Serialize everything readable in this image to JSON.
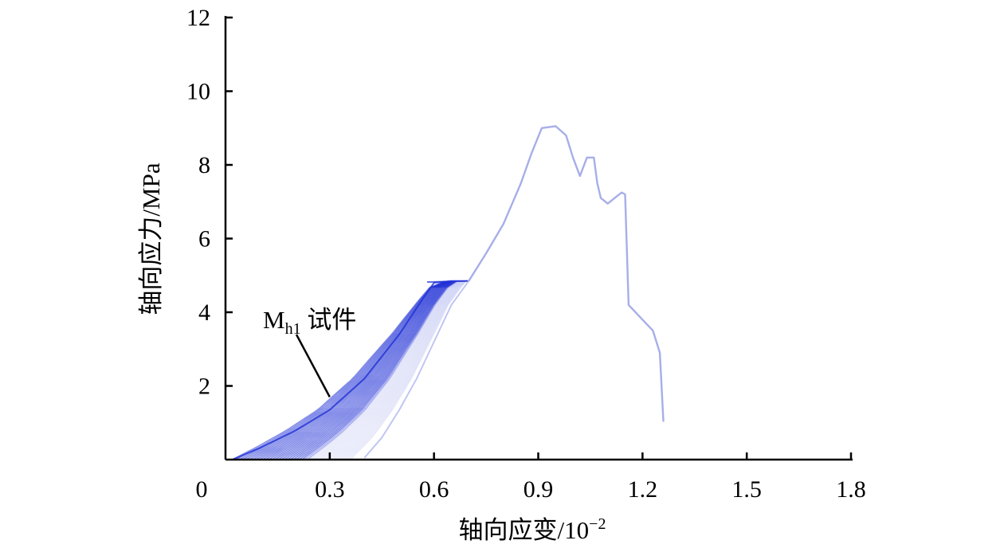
{
  "chart_data": {
    "type": "line",
    "xlabel": "轴向应变/10",
    "xlabel_sup": "−2",
    "ylabel": "轴向应力/MPa",
    "xlim": [
      0,
      1.8
    ],
    "ylim": [
      0,
      12
    ],
    "x_ticks": [
      "0",
      "0.3",
      "0.6",
      "0.9",
      "1.2",
      "1.5",
      "1.8"
    ],
    "y_ticks": [
      "2",
      "4",
      "6",
      "8",
      "10",
      "12"
    ],
    "grid": false,
    "annotation": {
      "main": "M",
      "subscript": "h1",
      "suffix": " 试件",
      "points_to": [
        0.3,
        1.7
      ]
    },
    "colors": {
      "cycles": "#1f2fd6",
      "cycles_light": "#b9c0f2",
      "envelope": "#a7aee8",
      "axis": "#000000"
    },
    "series": [
      {
        "role": "cyclic-loading-envelope",
        "points": [
          [
            0.02,
            0.0
          ],
          [
            0.1,
            0.32
          ],
          [
            0.2,
            0.78
          ],
          [
            0.3,
            1.35
          ],
          [
            0.4,
            2.2
          ],
          [
            0.5,
            3.4
          ],
          [
            0.57,
            4.4
          ],
          [
            0.6,
            4.8
          ],
          [
            0.65,
            4.85
          ],
          [
            0.7,
            4.85
          ]
        ]
      },
      {
        "role": "cyclic-unloading-envelope",
        "points": [
          [
            0.7,
            4.85
          ],
          [
            0.65,
            4.2
          ],
          [
            0.6,
            3.2
          ],
          [
            0.55,
            2.2
          ],
          [
            0.5,
            1.35
          ],
          [
            0.45,
            0.6
          ],
          [
            0.4,
            0.05
          ]
        ]
      },
      {
        "role": "post-cycle-curve",
        "points": [
          [
            0.7,
            4.85
          ],
          [
            0.75,
            5.6
          ],
          [
            0.8,
            6.4
          ],
          [
            0.85,
            7.5
          ],
          [
            0.88,
            8.3
          ],
          [
            0.91,
            9.0
          ],
          [
            0.95,
            9.05
          ],
          [
            0.98,
            8.8
          ],
          [
            1.0,
            8.2
          ],
          [
            1.02,
            7.7
          ],
          [
            1.04,
            8.2
          ],
          [
            1.06,
            8.2
          ],
          [
            1.07,
            7.5
          ],
          [
            1.08,
            7.1
          ],
          [
            1.1,
            6.95
          ],
          [
            1.12,
            7.1
          ],
          [
            1.14,
            7.25
          ],
          [
            1.15,
            7.2
          ],
          [
            1.16,
            4.2
          ],
          [
            1.2,
            3.8
          ],
          [
            1.23,
            3.5
          ],
          [
            1.25,
            2.9
          ],
          [
            1.26,
            1.05
          ]
        ]
      }
    ]
  }
}
